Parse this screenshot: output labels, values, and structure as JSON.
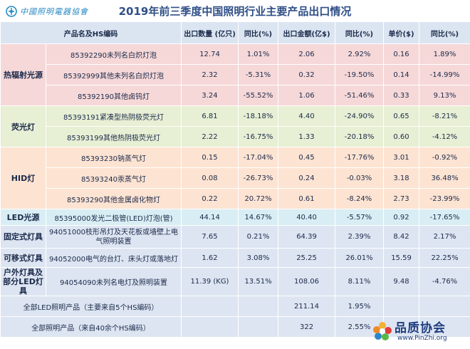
{
  "header": {
    "logo_text": "中國照明電器協會",
    "title": "2019年前三季度中国照明行业主要产品出口情况"
  },
  "table": {
    "columns": [
      "产品名及HS编码",
      "出口数量 (亿只)",
      "同比(%)",
      "出口金额(亿$)",
      "同比(%)",
      "单价($)",
      "同比(%)"
    ],
    "groups": [
      {
        "name": "热辐射光源",
        "rows": [
          {
            "product": "85392290未列名白炽灯泡",
            "qty": "12.74",
            "qty_yoy": "1.01%",
            "amount": "2.06",
            "amount_yoy": "2.92%",
            "price": "0.16",
            "price_yoy": "1.89%"
          },
          {
            "product": "85392999其他未列名白炽灯泡",
            "qty": "2.32",
            "qty_yoy": "-5.31%",
            "amount": "0.32",
            "amount_yoy": "-19.50%",
            "price": "0.14",
            "price_yoy": "-14.99%"
          },
          {
            "product": "85392190其他卤钨灯",
            "qty": "3.24",
            "qty_yoy": "-55.52%",
            "amount": "1.06",
            "amount_yoy": "-51.46%",
            "price": "0.33",
            "price_yoy": "9.13%"
          }
        ]
      },
      {
        "name": "荧光灯",
        "rows": [
          {
            "product": "85393191紧凑型热阴极荧光灯",
            "qty": "6.81",
            "qty_yoy": "-18.18%",
            "amount": "4.40",
            "amount_yoy": "-24.90%",
            "price": "0.65",
            "price_yoy": "-8.21%"
          },
          {
            "product": "85393199其他热阴极荧光灯",
            "qty": "2.22",
            "qty_yoy": "-16.75%",
            "amount": "1.33",
            "amount_yoy": "-20.18%",
            "price": "0.60",
            "price_yoy": "-4.12%"
          }
        ]
      },
      {
        "name": "HID灯",
        "rows": [
          {
            "product": "85393230钠蒸气灯",
            "qty": "0.15",
            "qty_yoy": "-17.04%",
            "amount": "0.45",
            "amount_yoy": "-17.76%",
            "price": "3.01",
            "price_yoy": "-0.92%"
          },
          {
            "product": "85393240汞蒸气灯",
            "qty": "0.08",
            "qty_yoy": "-26.73%",
            "amount": "0.24",
            "amount_yoy": "-0.03%",
            "price": "3.18",
            "price_yoy": "36.48%"
          },
          {
            "product": "85393290其他金属卤化物灯",
            "qty": "0.22",
            "qty_yoy": "20.72%",
            "amount": "0.61",
            "amount_yoy": "-8.24%",
            "price": "2.73",
            "price_yoy": "-23.99%"
          }
        ]
      },
      {
        "name": "LED光源",
        "rows": [
          {
            "product": "85395000发光二极管(LED)灯泡(管)",
            "qty": "44.14",
            "qty_yoy": "14.67%",
            "amount": "40.40",
            "amount_yoy": "-5.57%",
            "price": "0.92",
            "price_yoy": "-17.65%"
          }
        ]
      },
      {
        "name": "固定式灯具",
        "rows": [
          {
            "product": "94051000枝形吊灯及天花板或墙壁上电气照明装置",
            "qty": "7.65",
            "qty_yoy": "0.21%",
            "amount": "64.39",
            "amount_yoy": "2.39%",
            "price": "8.42",
            "price_yoy": "2.17%"
          }
        ]
      },
      {
        "name": "可移式灯具",
        "rows": [
          {
            "product": "94052000电气的台灯、床头灯或落地灯",
            "qty": "1.62",
            "qty_yoy": "3.08%",
            "amount": "25.25",
            "amount_yoy": "26.01%",
            "price": "15.59",
            "price_yoy": "22.25%"
          }
        ]
      },
      {
        "name": "户外灯具及部分LED灯具",
        "rows": [
          {
            "product": "94054090未列名电灯及照明装置",
            "qty": "11.39 (KG)",
            "qty_yoy": "13.51%",
            "amount": "108.06",
            "amount_yoy": "8.11%",
            "price": "9.48",
            "price_yoy": "-4.76%"
          }
        ]
      }
    ],
    "totals": [
      {
        "label": "全部LED照明产品（主要来自5个HS编码）",
        "amount": "211.14",
        "amount_yoy": "1.95%"
      },
      {
        "label": "全部照明产品（来自40余个HS编码）",
        "amount": "322",
        "amount_yoy": "2.55%"
      }
    ]
  },
  "watermark": {
    "name": "品质协会",
    "url": "www.PinZhi.org"
  },
  "colors": {
    "header_bg": "#dbe5f1",
    "thermal_bg": "#f6d8d8",
    "fluorescent_bg": "#e7efd4",
    "hid_bg": "#fde3d2",
    "led_bg": "#d8eef4",
    "fixture_bg": "#dde5f2",
    "title_color": "#2f4f87"
  }
}
